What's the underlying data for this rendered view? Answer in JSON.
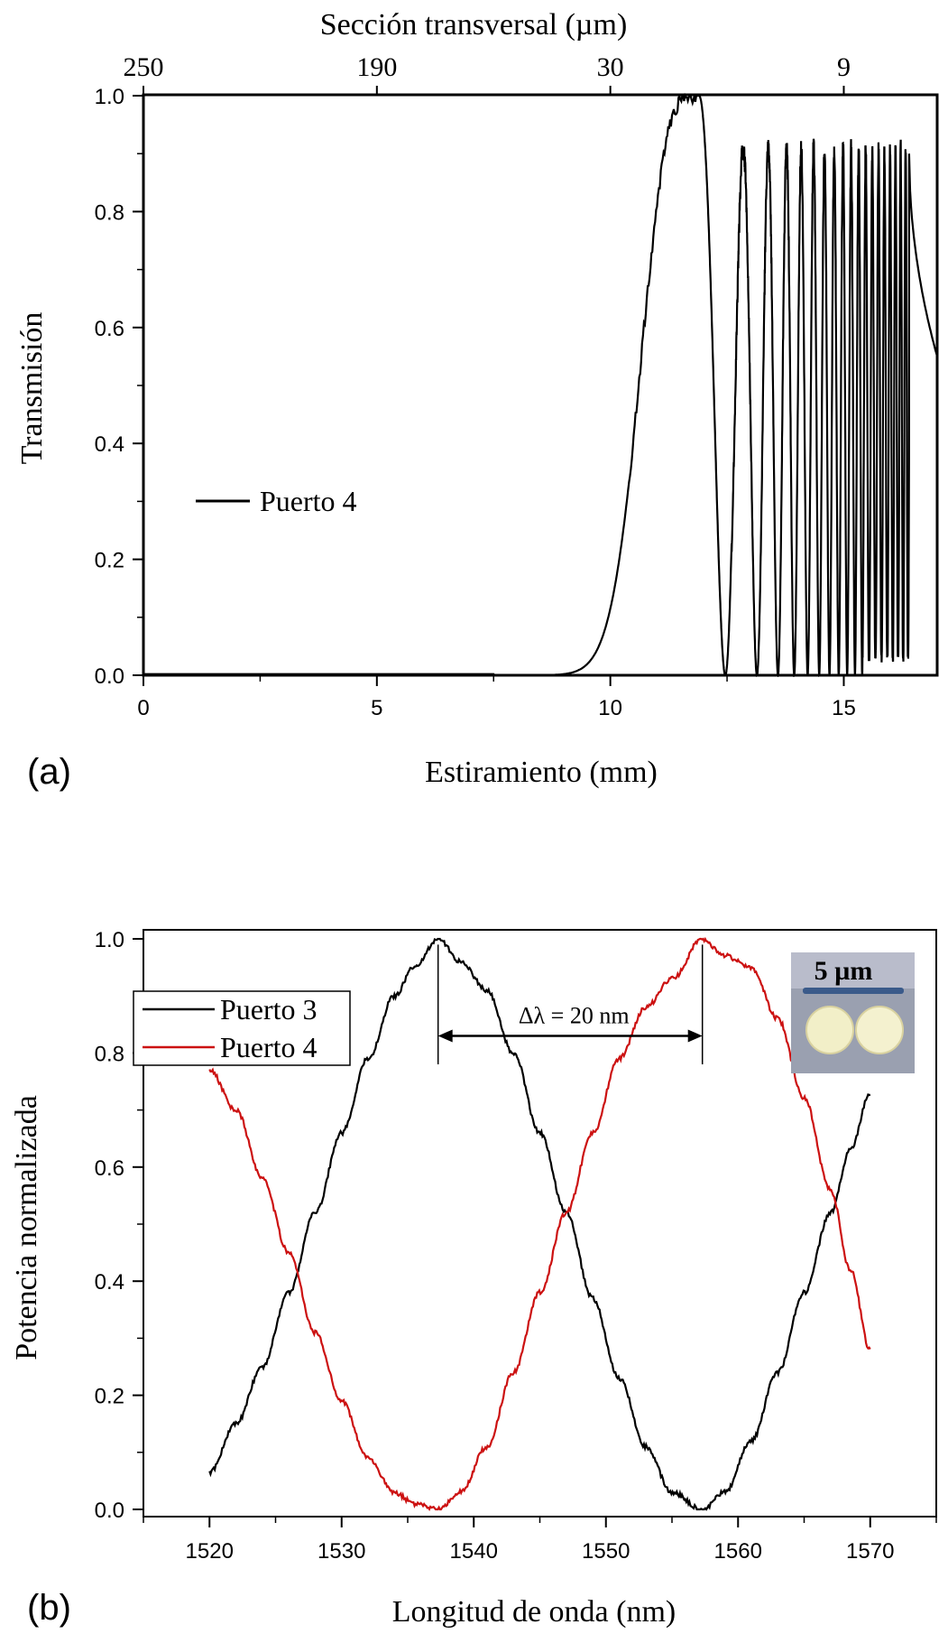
{
  "chart_data": [
    {
      "type": "line",
      "panel_label": "(a)",
      "xlabel": "Estiramiento (mm)",
      "ylabel": "Transmisión",
      "top_xlabel": "Sección transversal (µm)",
      "xlim": [
        0,
        17
      ],
      "ylim": [
        0,
        1.0
      ],
      "xticks": [
        "0",
        "5",
        "10",
        "15"
      ],
      "xtick_values": [
        0,
        5,
        10,
        15
      ],
      "yticks": [
        "0.0",
        "0.2",
        "0.4",
        "0.6",
        "0.8",
        "1.0"
      ],
      "ytick_values": [
        0,
        0.2,
        0.4,
        0.6,
        0.8,
        1.0
      ],
      "top_ticks": [
        "250",
        "190",
        "30",
        "9"
      ],
      "top_tick_positions_mm": [
        0,
        5,
        10,
        15
      ],
      "legend": [
        "Puerto 4"
      ],
      "series": [
        {
          "name": "Puerto 4",
          "color": "#000000",
          "description": "Near-zero transmission up to ~8.5 mm, rising peak at ~11.9 mm, then oscillations with decreasing period up to ~16.4 mm, ending near 0.55 at 17 mm",
          "x_start": 0,
          "x_rise": 8.5,
          "x_peak": 11.9,
          "x_osc_end": 16.4,
          "x_end": 17,
          "end_value": 0.55
        }
      ]
    },
    {
      "type": "line",
      "panel_label": "(b)",
      "xlabel": "Longitud de onda (nm)",
      "ylabel": "Potencia normalizada",
      "xlim": [
        1515,
        1575
      ],
      "ylim": [
        0,
        1.0
      ],
      "xticks": [
        "1520",
        "1530",
        "1540",
        "1550",
        "1560",
        "1570"
      ],
      "xtick_values": [
        1520,
        1530,
        1540,
        1550,
        1560,
        1570
      ],
      "yticks": [
        "0.0",
        "0.2",
        "0.4",
        "0.6",
        "0.8",
        "1.0"
      ],
      "ytick_values": [
        0,
        0.2,
        0.4,
        0.6,
        0.8,
        1.0
      ],
      "legend": [
        "Puerto 3",
        "Puerto 4"
      ],
      "annotation": "Δλ = 20 nm",
      "annotation_span_nm": [
        1537.3,
        1557.3
      ],
      "inset_label": "5 µm",
      "series": [
        {
          "name": "Puerto 3",
          "color": "#000000",
          "x": [
            1520,
            1522,
            1524,
            1526,
            1528,
            1530,
            1532,
            1534,
            1535.5,
            1537.3,
            1539,
            1541,
            1543,
            1545,
            1547,
            1549,
            1551,
            1553,
            1555,
            1557.3,
            1559,
            1561,
            1563,
            1565,
            1567,
            1568.5,
            1570
          ],
          "values": [
            0.065,
            0.15,
            0.25,
            0.38,
            0.52,
            0.66,
            0.79,
            0.9,
            0.95,
            1.0,
            0.96,
            0.91,
            0.8,
            0.66,
            0.52,
            0.37,
            0.23,
            0.11,
            0.03,
            0.0,
            0.03,
            0.12,
            0.24,
            0.38,
            0.52,
            0.63,
            0.73
          ]
        },
        {
          "name": "Puerto 4",
          "color": "#cc1111",
          "x": [
            1520,
            1522,
            1524,
            1526,
            1528,
            1530,
            1532,
            1534,
            1535.5,
            1537.3,
            1539,
            1541,
            1543,
            1545,
            1547,
            1549,
            1551,
            1553,
            1555,
            1557.3,
            1559,
            1561,
            1563,
            1565,
            1567,
            1568.5,
            1570
          ],
          "values": [
            0.77,
            0.7,
            0.58,
            0.45,
            0.31,
            0.19,
            0.09,
            0.03,
            0.01,
            0.0,
            0.03,
            0.11,
            0.24,
            0.38,
            0.52,
            0.66,
            0.79,
            0.88,
            0.93,
            1.0,
            0.97,
            0.95,
            0.86,
            0.72,
            0.56,
            0.42,
            0.28
          ]
        }
      ]
    }
  ]
}
